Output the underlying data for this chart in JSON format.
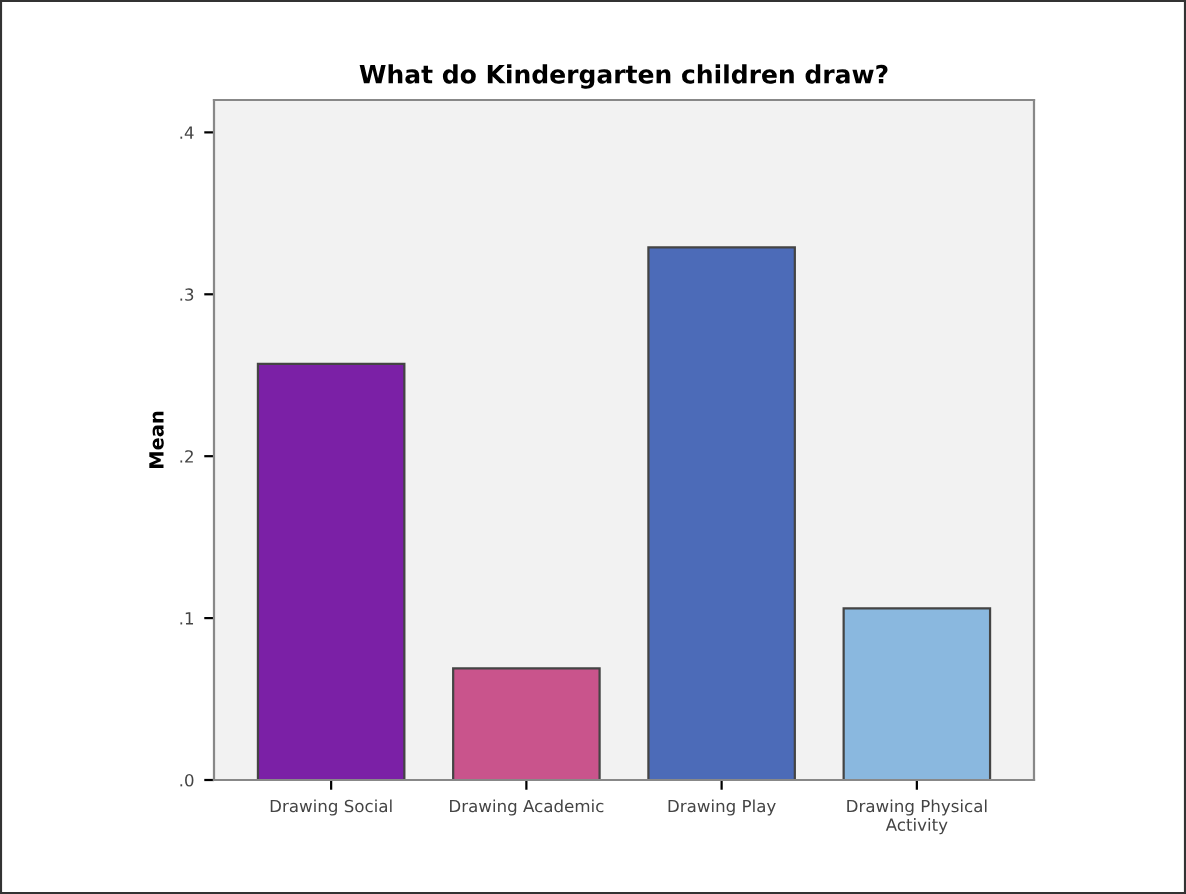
{
  "chart_data": {
    "type": "bar",
    "title": "What do Kindergarten children draw?",
    "ylabel": "Mean",
    "categories": [
      "Drawing Social",
      "Drawing Academic",
      "Drawing Play",
      "Drawing Physical\nActivity"
    ],
    "values": [
      0.257,
      0.069,
      0.329,
      0.106
    ],
    "colors": [
      "#7b20a6",
      "#c9548c",
      "#4c6bb8",
      "#8ab8df"
    ],
    "ylim": [
      0,
      0.42
    ],
    "yticks": [
      {
        "value": 0,
        "label": ".0"
      },
      {
        "value": 0.1,
        "label": ".1"
      },
      {
        "value": 0.2,
        "label": ".2"
      },
      {
        "value": 0.3,
        "label": ".3"
      },
      {
        "value": 0.4,
        "label": ".4"
      }
    ],
    "grid": false
  }
}
